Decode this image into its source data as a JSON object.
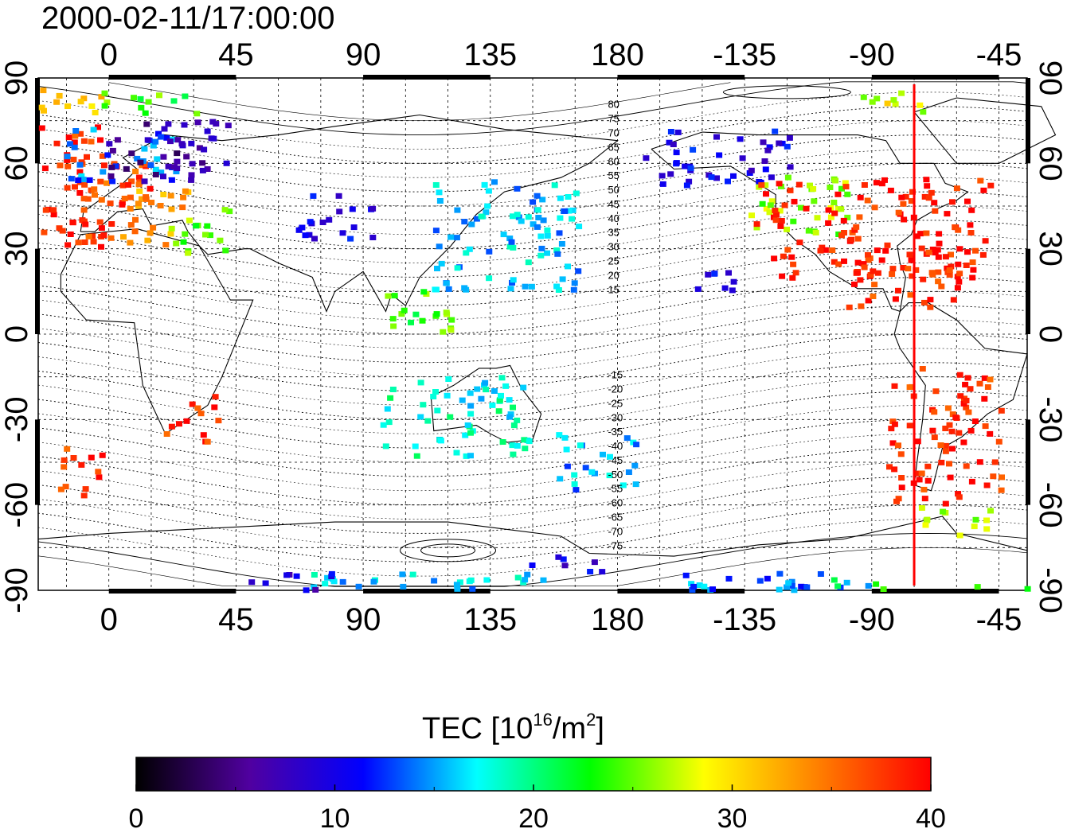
{
  "timestamp": "2000-02-11/17:00:00",
  "map": {
    "projection": "equirectangular",
    "lon_ticks_top": [
      "0",
      "45",
      "90",
      "135",
      "180",
      "-135",
      "-90",
      "-45"
    ],
    "lon_ticks_bottom": [
      "0",
      "45",
      "90",
      "135",
      "180",
      "-135",
      "-90",
      "-45"
    ],
    "lat_ticks": [
      "90",
      "60",
      "30",
      "0",
      "-30",
      "-60",
      "-90"
    ],
    "meridian_marker": {
      "lon": -75,
      "color": "#ff0000"
    },
    "magnetic_latitude_labels": [
      "80",
      "75",
      "70",
      "65",
      "60",
      "55",
      "50",
      "45",
      "40",
      "35",
      "30",
      "25",
      "20",
      "15",
      "-15",
      "-20",
      "-25",
      "-30",
      "-35",
      "-40",
      "-45",
      "-50",
      "-55",
      "-60",
      "-65",
      "-70",
      "-75"
    ]
  },
  "chart_data": {
    "type": "heatmap",
    "title": "2000-02-11/17:00:00",
    "xlabel": "",
    "ylabel": "",
    "xlim": [
      -25,
      325
    ],
    "ylim": [
      -90,
      90
    ],
    "x_tick_values": [
      0,
      45,
      90,
      135,
      180,
      225,
      270,
      315
    ],
    "y_tick_values": [
      90,
      60,
      30,
      0,
      -30,
      -60,
      -90
    ],
    "grid": true,
    "colorbar": {
      "label": "TEC  [10^16/m^2]",
      "label_main": "TEC  [10",
      "label_exp": "16",
      "label_unit": "/m",
      "label_exp2": "2",
      "label_close": "]",
      "range": [
        0,
        40
      ],
      "ticks": [
        "0",
        "10",
        "20",
        "30",
        "40"
      ],
      "colormap": [
        "#000000",
        "#5000a0",
        "#0000ff",
        "#00ffff",
        "#00ff00",
        "#ffff00",
        "#ff8000",
        "#ff0000"
      ]
    },
    "regions": [
      {
        "lon": -18,
        "lat": 52,
        "w": 18,
        "h": 22,
        "tec": 38
      },
      {
        "lon": 2,
        "lat": 47,
        "w": 14,
        "h": 14,
        "tec": 37
      },
      {
        "lon": 16,
        "lat": 44,
        "w": 12,
        "h": 12,
        "tec": 33
      },
      {
        "lon": 3,
        "lat": 64,
        "w": 20,
        "h": 10,
        "tec": 14
      },
      {
        "lon": 20,
        "lat": 66,
        "w": 22,
        "h": 12,
        "tec": 6
      },
      {
        "lon": 32,
        "lat": 37,
        "w": 12,
        "h": 8,
        "tec": 25
      },
      {
        "lon": 28,
        "lat": -29,
        "w": 10,
        "h": 8,
        "tec": 38
      },
      {
        "lon": -10,
        "lat": -46,
        "w": 8,
        "h": 10,
        "tec": 38
      },
      {
        "lon": -17,
        "lat": 82,
        "w": 14,
        "h": 5,
        "tec": 30
      },
      {
        "lon": 15,
        "lat": 82,
        "w": 18,
        "h": 4,
        "tec": 24
      },
      {
        "lon": 80,
        "lat": 42,
        "w": 14,
        "h": 8,
        "tec": 10
      },
      {
        "lon": 140,
        "lat": 35,
        "w": 26,
        "h": 20,
        "tec": 16
      },
      {
        "lon": 110,
        "lat": 8,
        "w": 14,
        "h": 8,
        "tec": 24
      },
      {
        "lon": 122,
        "lat": -28,
        "w": 26,
        "h": 14,
        "tec": 18
      },
      {
        "lon": 172,
        "lat": -44,
        "w": 14,
        "h": 10,
        "tec": 15
      },
      {
        "lon": 215,
        "lat": 20,
        "w": 8,
        "h": 6,
        "tec": 11
      },
      {
        "lon": 215,
        "lat": 63,
        "w": 26,
        "h": 10,
        "tec": 10
      },
      {
        "lon": 243,
        "lat": 45,
        "w": 18,
        "h": 12,
        "tec": 26
      },
      {
        "lon": 270,
        "lat": 38,
        "w": 42,
        "h": 18,
        "tec": 39
      },
      {
        "lon": 279,
        "lat": 20,
        "w": 22,
        "h": 10,
        "tec": 38
      },
      {
        "lon": 295,
        "lat": -35,
        "w": 20,
        "h": 24,
        "tec": 38
      },
      {
        "lon": 298,
        "lat": -65,
        "w": 14,
        "h": 5,
        "tec": 26
      },
      {
        "lon": 275,
        "lat": 83,
        "w": 14,
        "h": 4,
        "tec": 28
      },
      {
        "lon": 240,
        "lat": -87,
        "w": 40,
        "h": 4,
        "tec": 14
      },
      {
        "lon": 120,
        "lat": -87,
        "w": 50,
        "h": 4,
        "tec": 16
      },
      {
        "lon": 62,
        "lat": -86,
        "w": 18,
        "h": 3,
        "tec": 9
      },
      {
        "lon": 160,
        "lat": -80,
        "w": 14,
        "h": 3,
        "tec": 10
      },
      {
        "lon": 300,
        "lat": -88,
        "w": 45,
        "h": 3,
        "tec": 22
      }
    ]
  }
}
